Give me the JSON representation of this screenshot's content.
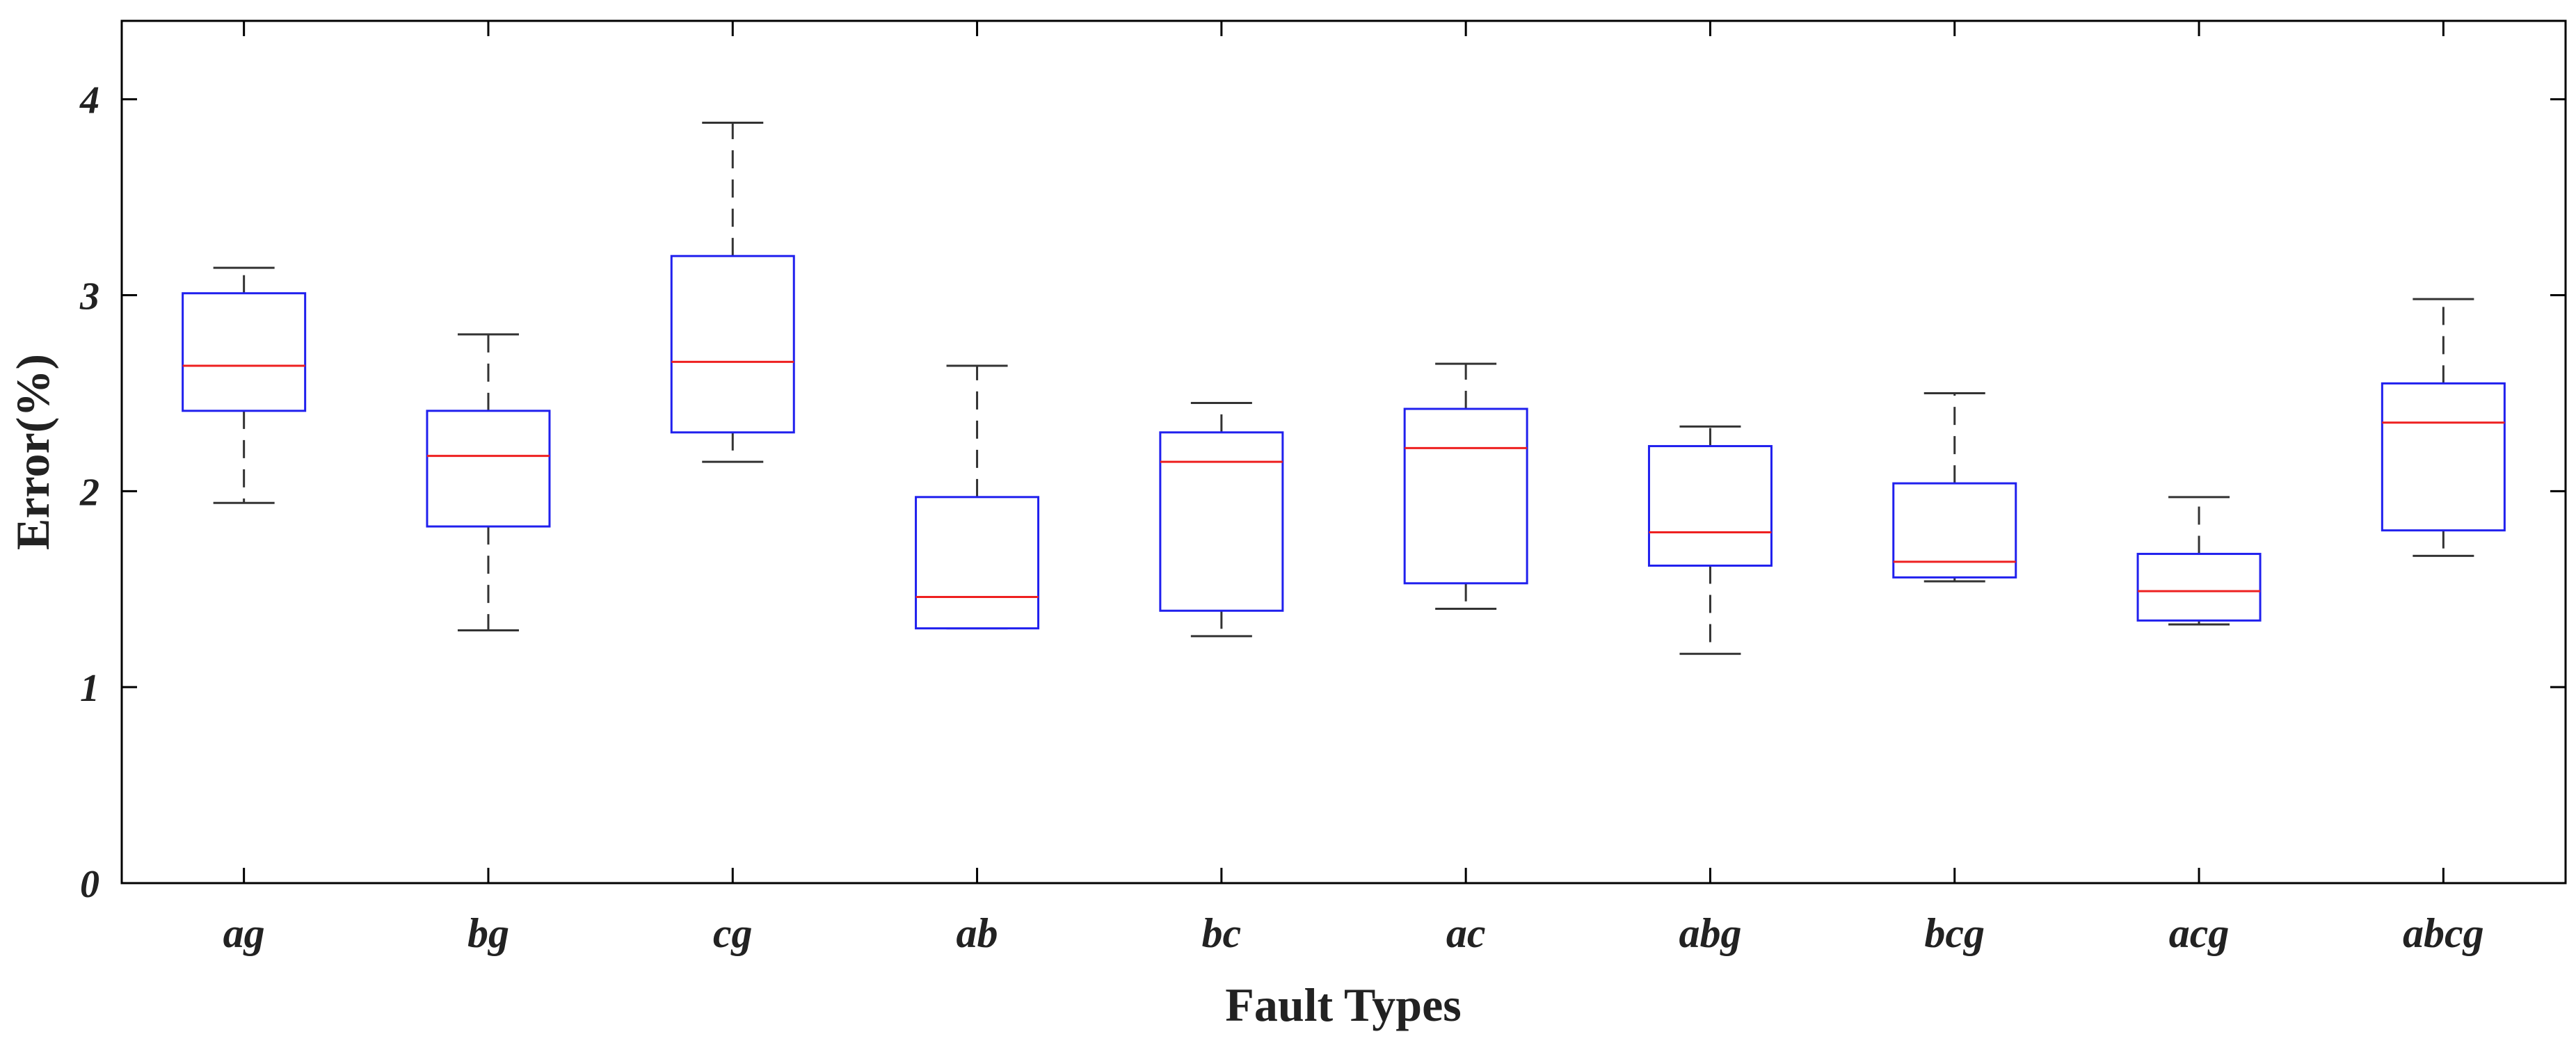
{
  "chart_data": {
    "type": "box",
    "title": "",
    "xlabel": "Fault Types",
    "ylabel": "Error(%)",
    "ylim": [
      0,
      4.4
    ],
    "yticks": [
      0,
      1,
      2,
      3,
      4
    ],
    "ytick_labels": [
      "0",
      "1",
      "2",
      "3",
      "4"
    ],
    "grid": false,
    "categories": [
      "ag",
      "bg",
      "cg",
      "ab",
      "bc",
      "ac",
      "abg",
      "bcg",
      "acg",
      "abcg"
    ],
    "boxes": [
      {
        "category": "ag",
        "min": 1.94,
        "q1": 2.41,
        "median": 2.64,
        "q3": 3.01,
        "max": 3.14
      },
      {
        "category": "bg",
        "min": 1.29,
        "q1": 1.82,
        "median": 2.18,
        "q3": 2.41,
        "max": 2.8
      },
      {
        "category": "cg",
        "min": 2.15,
        "q1": 2.3,
        "median": 2.66,
        "q3": 3.2,
        "max": 3.88
      },
      {
        "category": "ab",
        "min": 1.3,
        "q1": 1.3,
        "median": 1.46,
        "q3": 1.97,
        "max": 2.64
      },
      {
        "category": "bc",
        "min": 1.26,
        "q1": 1.39,
        "median": 2.15,
        "q3": 2.3,
        "max": 2.45
      },
      {
        "category": "ac",
        "min": 1.4,
        "q1": 1.53,
        "median": 2.22,
        "q3": 2.42,
        "max": 2.65
      },
      {
        "category": "abg",
        "min": 1.17,
        "q1": 1.62,
        "median": 1.79,
        "q3": 2.23,
        "max": 2.33
      },
      {
        "category": "bcg",
        "min": 1.54,
        "q1": 1.56,
        "median": 1.64,
        "q3": 2.04,
        "max": 2.5
      },
      {
        "category": "acg",
        "min": 1.32,
        "q1": 1.34,
        "median": 1.49,
        "q3": 1.68,
        "max": 1.97
      },
      {
        "category": "abcg",
        "min": 1.67,
        "q1": 1.8,
        "median": 2.35,
        "q3": 2.55,
        "max": 2.98
      }
    ],
    "colors": {
      "box": "#2020ee",
      "median": "#ee2020",
      "whisker": "#333333",
      "axis": "#000000"
    }
  }
}
